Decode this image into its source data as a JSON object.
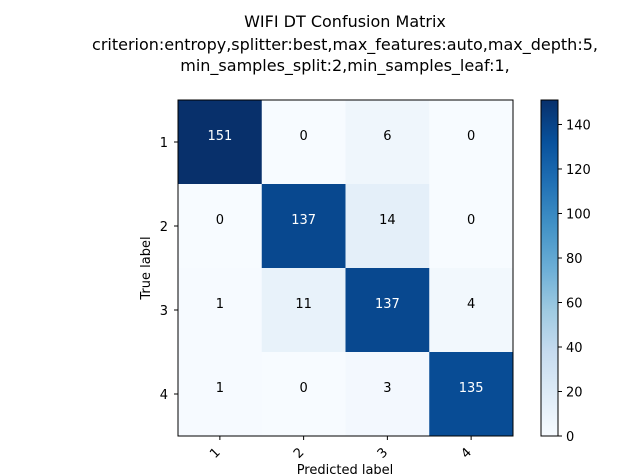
{
  "chart_data": {
    "type": "heatmap",
    "title_lines": [
      "WIFI DT Confusion Matrix",
      "criterion:entropy,splitter:best,max_features:auto,max_depth:5,",
      "min_samples_split:2,min_samples_leaf:1,"
    ],
    "xlabel": "Predicted label",
    "ylabel": "True label",
    "x_categories": [
      "1",
      "2",
      "3",
      "4"
    ],
    "y_categories": [
      "1",
      "2",
      "3",
      "4"
    ],
    "matrix": [
      [
        151,
        0,
        6,
        0
      ],
      [
        0,
        137,
        14,
        0
      ],
      [
        1,
        11,
        137,
        4
      ],
      [
        1,
        0,
        3,
        135
      ]
    ],
    "colormap": "Blues",
    "colorbar": {
      "range": [
        0,
        151
      ],
      "ticks": [
        "0",
        "20",
        "40",
        "60",
        "80",
        "100",
        "120",
        "140"
      ]
    }
  }
}
